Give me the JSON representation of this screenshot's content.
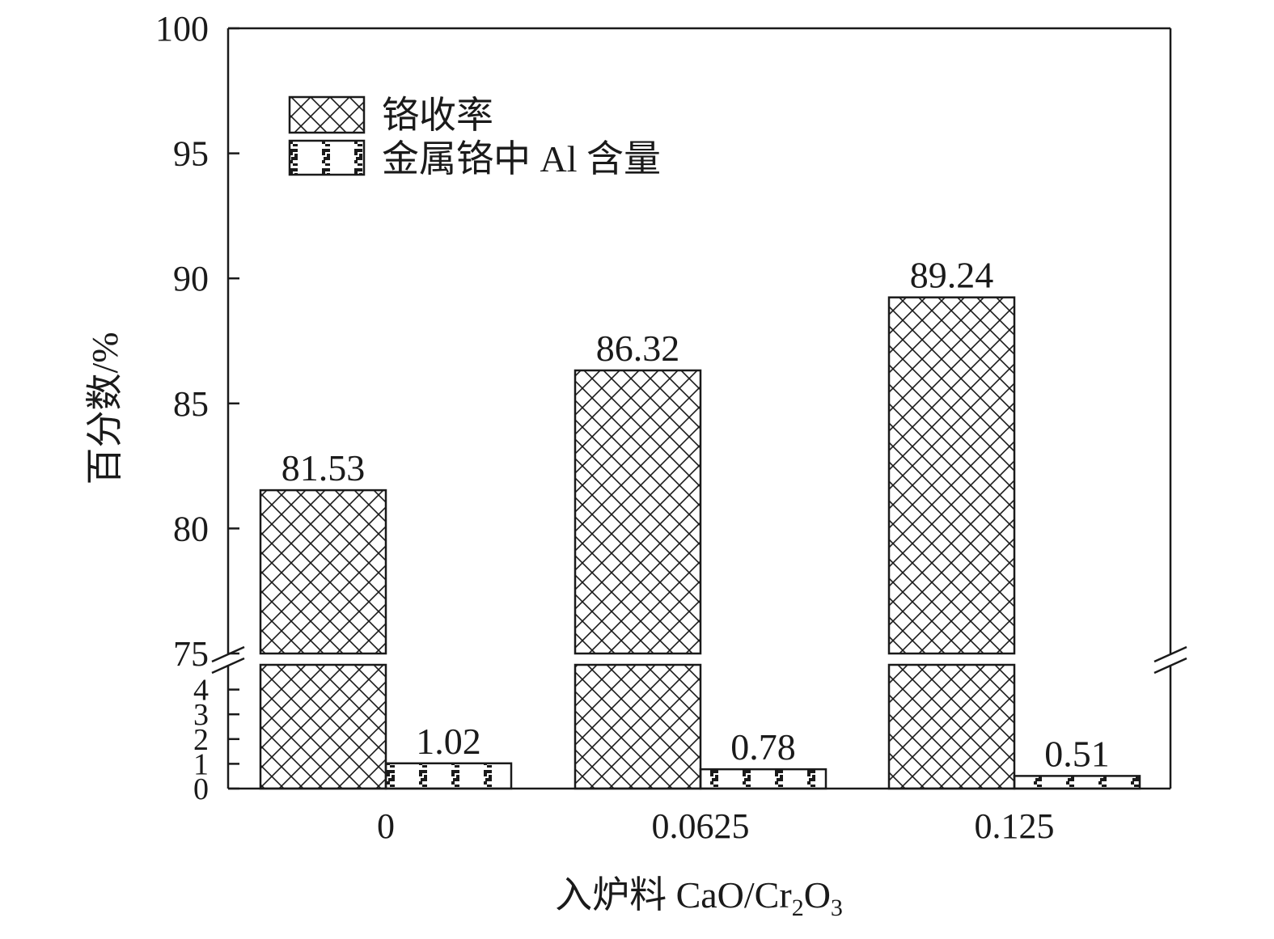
{
  "chart_data": {
    "type": "bar",
    "categories": [
      "0",
      "0.0625",
      "0.125"
    ],
    "series": [
      {
        "name": "铬收率",
        "values": [
          81.53,
          86.32,
          89.24
        ],
        "labels": [
          "81.53",
          "86.32",
          "89.24"
        ],
        "pattern": "crosshatch"
      },
      {
        "name": "金属铬中 Al 含量",
        "values": [
          1.02,
          0.78,
          0.51
        ],
        "labels": [
          "1.02",
          "0.78",
          "0.51"
        ],
        "pattern": "checker-dots"
      }
    ],
    "xlabel": {
      "main": "入炉料 CaO/Cr",
      "sub1": "2",
      "mid": "O",
      "sub2": "3"
    },
    "ylabel": "百分数/%",
    "y_axis": {
      "broken": true,
      "lower_segment": {
        "range": [
          0,
          5
        ],
        "ticks": [
          "0",
          "1",
          "2",
          "3",
          "4"
        ]
      },
      "upper_segment": {
        "range": [
          75,
          100
        ],
        "ticks": [
          "75",
          "80",
          "85",
          "90",
          "95",
          "100"
        ]
      }
    },
    "legend_position": "top-left",
    "colors": {
      "ink": "#1a1a1a",
      "background": "#ffffff"
    }
  }
}
